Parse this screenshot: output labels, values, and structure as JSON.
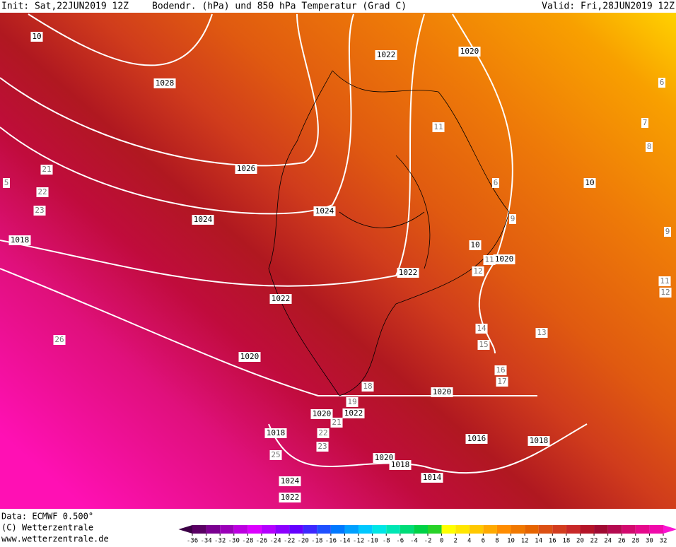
{
  "header": {
    "init": "Init: Sat,22JUN2019 12Z",
    "title": "Bodendr. (hPa) und 850 hPa Temperatur (Grad C)",
    "valid": "Valid: Fri,28JUN2019 12Z"
  },
  "isobar_labels": [
    "10",
    "1028",
    "1022",
    "1020",
    "1026",
    "1024",
    "1024",
    "1018",
    "1022",
    "1020",
    "10",
    "1022",
    "1020",
    "1020",
    "1020",
    "1022",
    "1018",
    "1016",
    "1018",
    "1020",
    "1018",
    "1014",
    "1024",
    "1022",
    "10"
  ],
  "temperature_labels": [
    "11",
    "6",
    "6",
    "7",
    "8",
    "9",
    "9",
    "21",
    "22",
    "23",
    "5",
    "11",
    "12",
    "14",
    "15",
    "13",
    "16",
    "17",
    "18",
    "19",
    "21",
    "22",
    "23",
    "25",
    "26",
    "11",
    "12"
  ],
  "footer": {
    "data": "Data: ECMWF  0.500°",
    "copyright": "(C) Wetterzentrale",
    "url": "www.wetterzentrale.de"
  },
  "colorbar": {
    "ticks": [
      -36,
      -34,
      -32,
      -30,
      -28,
      -26,
      -24,
      -22,
      -20,
      -18,
      -16,
      -14,
      -12,
      -10,
      -8,
      -6,
      -4,
      -2,
      0,
      2,
      4,
      6,
      8,
      10,
      12,
      14,
      16,
      18,
      20,
      22,
      24,
      26,
      28,
      30,
      32
    ],
    "colors": [
      "#3c0046",
      "#5a0064",
      "#7a0090",
      "#9a00b8",
      "#bc00e0",
      "#dc00ff",
      "#b400ff",
      "#8c00ff",
      "#6400ff",
      "#3c28ff",
      "#1e50ff",
      "#0078ff",
      "#00a0ff",
      "#00c8ff",
      "#00e6e6",
      "#00e6b4",
      "#00dc78",
      "#00d246",
      "#28d228",
      "#ffff00",
      "#ffe600",
      "#ffc800",
      "#ffaa00",
      "#ff8c00",
      "#f07800",
      "#e66400",
      "#dc5014",
      "#d23c1e",
      "#c82828",
      "#b41428",
      "#a00a32",
      "#b40a50",
      "#d20a6e",
      "#e60a8c",
      "#f00aaa",
      "#fa14d2"
    ]
  }
}
